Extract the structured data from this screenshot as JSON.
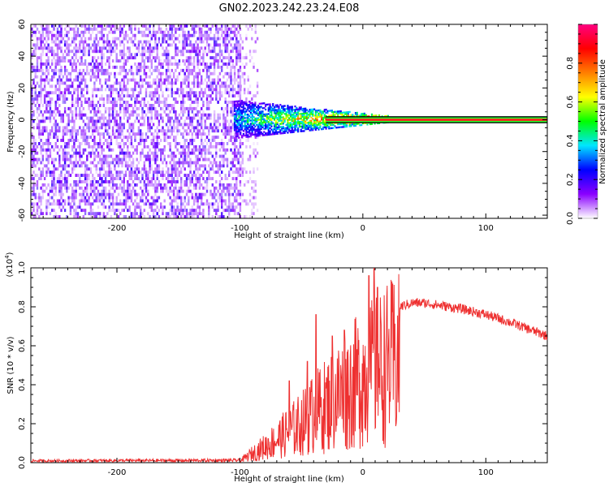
{
  "figure_title": "GN02.2023.242.23.24.E08",
  "chart_data": [
    {
      "type": "heatmap",
      "subtype": "spectrogram",
      "xlabel": "Height of straight line (km)",
      "ylabel": "Frequency (Hz)",
      "xlim": [
        -270,
        150
      ],
      "ylim": [
        -62,
        60
      ],
      "x_ticks": [
        "-200",
        "-100",
        "0",
        "100"
      ],
      "y_ticks": [
        "-60",
        "-40",
        "-20",
        "0",
        "20",
        "40",
        "60"
      ],
      "colorbar": {
        "label": "Normalized spectral amplitude",
        "range": [
          0,
          1
        ],
        "ticks": [
          "0.0",
          "0.2",
          "0.4",
          "0.6",
          "0.8"
        ],
        "colormap": [
          "#ffffff",
          "#8a00ff",
          "#0000ff",
          "#00e5ff",
          "#00ff00",
          "#ffff00",
          "#ff7f00",
          "#ff0000",
          "#ff0080"
        ]
      },
      "regions": [
        {
          "x": [
            -270,
            -100
          ],
          "freq": [
            -62,
            60
          ],
          "amplitude": 0.12,
          "pattern": "broadband noise"
        },
        {
          "x": [
            -100,
            -85
          ],
          "freq": [
            -62,
            60
          ],
          "amplitude": 0.06,
          "pattern": "sparse noise"
        },
        {
          "x": [
            -105,
            20
          ],
          "freq_halfwidth_start": 12,
          "freq_halfwidth_end": 2,
          "amplitude_start": 0.3,
          "amplitude_end": 0.85,
          "pattern": "converging signal"
        },
        {
          "x": [
            -30,
            150
          ],
          "freq": [
            -1,
            1
          ],
          "amplitude": 0.85,
          "pattern": "steady tone"
        }
      ]
    },
    {
      "type": "line",
      "xlabel": "Height of straight line (km)",
      "ylabel": "SNR (10 * v/v)",
      "y_multiplier": "(x10^4)",
      "xlim": [
        -270,
        150
      ],
      "ylim": [
        0,
        1.0
      ],
      "x_ticks": [
        "-200",
        "-100",
        "0",
        "100"
      ],
      "y_ticks": [
        "0.0",
        "0.2",
        "0.4",
        "0.6",
        "0.8",
        "1.0"
      ],
      "color": "#ee3030",
      "envelope": {
        "x": [
          -270,
          -100,
          -95,
          -90,
          -80,
          -70,
          -60,
          -50,
          -40,
          -30,
          -20,
          -10,
          0,
          10,
          20,
          30,
          40,
          50,
          60,
          80,
          100,
          120,
          150
        ],
        "y": [
          0.01,
          0.015,
          0.04,
          0.07,
          0.12,
          0.18,
          0.24,
          0.3,
          0.38,
          0.44,
          0.52,
          0.58,
          0.66,
          0.7,
          0.76,
          0.8,
          0.82,
          0.82,
          0.81,
          0.79,
          0.76,
          0.72,
          0.65
        ]
      },
      "spikes": [
        {
          "x": -60,
          "y": 0.42
        },
        {
          "x": -45,
          "y": 0.52
        },
        {
          "x": -38,
          "y": 0.76
        },
        {
          "x": -25,
          "y": 0.65
        },
        {
          "x": -15,
          "y": 0.68
        },
        {
          "x": 5,
          "y": 0.96
        },
        {
          "x": 9,
          "y": 1.0
        },
        {
          "x": 12,
          "y": 0.9
        }
      ]
    }
  ]
}
